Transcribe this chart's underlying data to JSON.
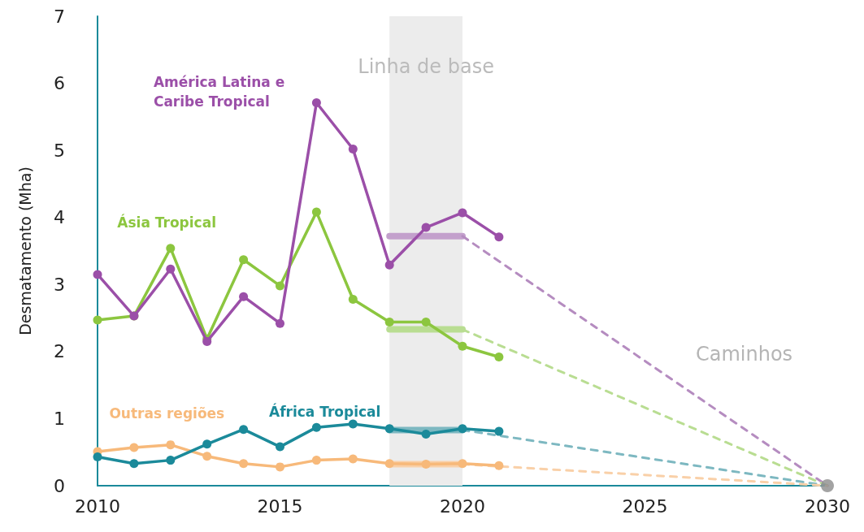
{
  "chart_data": {
    "type": "line",
    "ylabel": "Desmatamento (Mha)",
    "x": [
      2010,
      2011,
      2012,
      2013,
      2014,
      2015,
      2016,
      2017,
      2018,
      2019,
      2020,
      2021
    ],
    "xlim": [
      2010,
      2030
    ],
    "xticks": [
      2010,
      2015,
      2020,
      2025,
      2030
    ],
    "ylim": [
      0,
      7
    ],
    "yticks": [
      0,
      1,
      2,
      3,
      4,
      5,
      6,
      7
    ],
    "grid": false,
    "legend": false,
    "marker": "circle",
    "line_style": "solid",
    "series": [
      {
        "name": "América Latina e Caribe Tropical",
        "color": "#9b4fa8",
        "values": [
          3.15,
          2.53,
          3.23,
          2.15,
          2.82,
          2.42,
          5.71,
          5.02,
          3.29,
          3.85,
          4.07,
          3.71
        ]
      },
      {
        "name": "Ásia Tropical",
        "color": "#8cc63f",
        "values": [
          2.47,
          2.53,
          3.54,
          2.19,
          3.37,
          2.98,
          4.08,
          2.78,
          2.44,
          2.44,
          2.08,
          1.92
        ]
      },
      {
        "name": "África Tropical",
        "color": "#1b8a9a",
        "values": [
          0.43,
          0.33,
          0.38,
          0.62,
          0.84,
          0.58,
          0.87,
          0.92,
          0.85,
          0.77,
          0.85,
          0.81
        ]
      },
      {
        "name": "Outras regiões",
        "color": "#f7b97a",
        "values": [
          0.51,
          0.57,
          0.61,
          0.44,
          0.33,
          0.28,
          0.38,
          0.4,
          0.33,
          0.32,
          0.33,
          0.3
        ]
      },
      {
        "color": "#c3a0cc",
        "x": [
          2018,
          2020
        ],
        "values": [
          3.72,
          3.72
        ],
        "marker": "none"
      },
      {
        "color": "#b9dd92",
        "x": [
          2018,
          2020
        ],
        "values": [
          2.33,
          2.33
        ],
        "marker": "none"
      },
      {
        "color": "#7db8c1",
        "x": [
          2018,
          2020
        ],
        "values": [
          0.83,
          0.83
        ],
        "marker": "none"
      },
      {
        "color": "#f9d0a8",
        "x": [
          2018,
          2020
        ],
        "values": [
          0.32,
          0.32
        ],
        "marker": "none"
      },
      {
        "color": "#b58cc0",
        "x": [
          2020,
          2030
        ],
        "values": [
          3.72,
          0
        ],
        "marker": "none",
        "line_style": "dashed"
      },
      {
        "color": "#b9dd92",
        "x": [
          2020,
          2030
        ],
        "values": [
          2.33,
          0
        ],
        "marker": "none",
        "line_style": "dashed"
      },
      {
        "color": "#7db8c1",
        "x": [
          2020,
          2030
        ],
        "values": [
          0.83,
          0
        ],
        "marker": "none",
        "line_style": "dashed"
      },
      {
        "color": "#f9d0a8",
        "x": [
          2020,
          2030
        ],
        "values": [
          0.32,
          0
        ],
        "marker": "none",
        "line_style": "dashed"
      },
      {
        "type": "scatter",
        "color": "#8c8c8c",
        "x": [
          2030
        ],
        "values": [
          0
        ]
      }
    ],
    "bands": [
      {
        "axis": "x",
        "from": 2018,
        "to": 2020,
        "label": "Linha de base",
        "color": "#ececec"
      }
    ],
    "annotations": [
      "Caminhos"
    ]
  }
}
